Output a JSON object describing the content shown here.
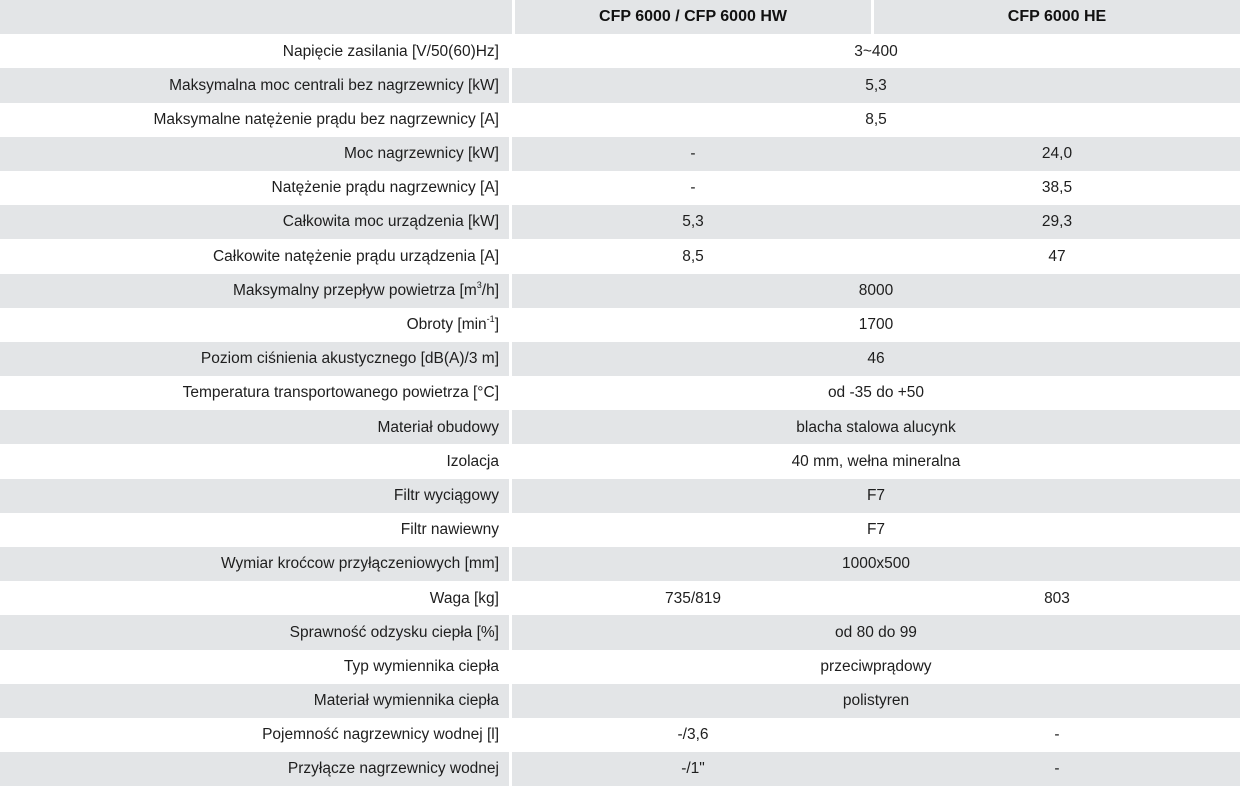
{
  "table": {
    "headers": [
      "",
      "CFP 6000 / CFP 6000 HW",
      "CFP 6000 HE"
    ],
    "rows": [
      {
        "label": "Napięcie zasilania [V/50(60)Hz]",
        "values": [
          "3~400"
        ]
      },
      {
        "label": "Maksymalna moc centrali bez nagrzewnicy [kW]",
        "values": [
          "5,3"
        ]
      },
      {
        "label": "Maksymalne natężenie prądu bez nagrzewnicy [A]",
        "values": [
          "8,5"
        ]
      },
      {
        "label": "Moc nagrzewnicy [kW]",
        "values": [
          "-",
          "24,0"
        ]
      },
      {
        "label": "Natężenie prądu nagrzewnicy [A]",
        "values": [
          "-",
          "38,5"
        ]
      },
      {
        "label": "Całkowita moc urządzenia [kW]",
        "values": [
          "5,3",
          "29,3"
        ]
      },
      {
        "label": "Całkowite natężenie prądu urządzenia [A]",
        "values": [
          "8,5",
          "47"
        ]
      },
      {
        "label_pre": "Maksymalny przepływ powietrza [m",
        "label_sup": "3",
        "label_post": "/h]",
        "values": [
          "8000"
        ]
      },
      {
        "label_pre": "Obroty [min",
        "label_sup": "-1",
        "label_post": "]",
        "values": [
          "1700"
        ]
      },
      {
        "label": "Poziom ciśnienia akustycznego [dB(A)/3 m]",
        "values": [
          "46"
        ]
      },
      {
        "label": "Temperatura transportowanego powietrza [°C]",
        "values": [
          "od -35 do +50"
        ]
      },
      {
        "label": "Materiał obudowy",
        "values": [
          "blacha stalowa alucynk"
        ]
      },
      {
        "label": "Izolacja",
        "values": [
          "40 mm, wełna mineralna"
        ]
      },
      {
        "label": "Filtr wyciągowy",
        "values": [
          "F7"
        ]
      },
      {
        "label": "Filtr nawiewny",
        "values": [
          "F7"
        ]
      },
      {
        "label": "Wymiar kroćcow przyłączeniowych [mm]",
        "values": [
          "1000x500"
        ]
      },
      {
        "label": "Waga [kg]",
        "values": [
          "735/819",
          "803"
        ]
      },
      {
        "label": "Sprawność odzysku ciepła [%]",
        "values": [
          "od 80 do 99"
        ]
      },
      {
        "label": "Typ wymiennika ciepła",
        "values": [
          "przeciwprądowy"
        ]
      },
      {
        "label": "Materiał wymiennika ciepła",
        "values": [
          "polistyren"
        ]
      },
      {
        "label": "Pojemność nagrzewnicy wodnej [l]",
        "values": [
          "-/3,6",
          "-"
        ]
      },
      {
        "label": "Przyłącze nagrzewnicy wodnej",
        "values": [
          "-/1\"",
          "-"
        ]
      }
    ]
  },
  "colors": {
    "row_shade": "#e3e5e7",
    "row_plain": "#ffffff",
    "text": "#1e1e1e"
  }
}
